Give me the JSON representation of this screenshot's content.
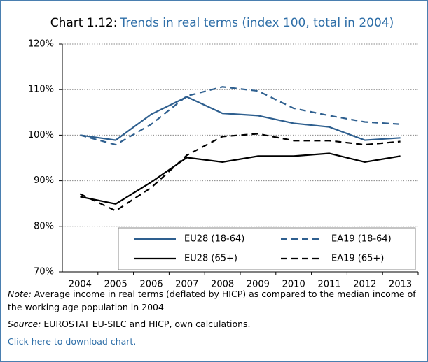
{
  "chart_data": {
    "type": "line",
    "title_label": "Chart 1.12:",
    "title": "Trends in real terms (index 100, total in 2004)",
    "categories": [
      "2004",
      "2005",
      "2006",
      "2007",
      "2008",
      "2009",
      "2010",
      "2011",
      "2012",
      "2013"
    ],
    "series": [
      {
        "name": "EU28 (18-64)",
        "color": "#2e5f8f",
        "line_style": "solid",
        "values": [
          100,
          98.9,
          104.6,
          108.4,
          104.8,
          104.3,
          102.6,
          101.8,
          98.9,
          99.4
        ]
      },
      {
        "name": "EA19 (18-64)",
        "color": "#2e5f8f",
        "line_style": "dashed",
        "values": [
          100,
          97.9,
          102.4,
          108.6,
          110.6,
          109.7,
          105.9,
          104.3,
          102.9,
          102.4
        ]
      },
      {
        "name": "EU28 (65+)",
        "color": "#000000",
        "line_style": "solid",
        "values": [
          86.5,
          84.9,
          89.7,
          95.1,
          94.1,
          95.4,
          95.4,
          96.0,
          94.1,
          95.4
        ]
      },
      {
        "name": "EA19 (65+)",
        "color": "#000000",
        "line_style": "dashed",
        "values": [
          87.1,
          83.4,
          88.5,
          95.6,
          99.7,
          100.3,
          98.8,
          98.8,
          97.9,
          98.6
        ]
      }
    ],
    "ylim": [
      70,
      120
    ],
    "yticks": [
      {
        "value": 70,
        "label": "70%"
      },
      {
        "value": 80,
        "label": "80%"
      },
      {
        "value": 90,
        "label": "90%"
      },
      {
        "value": 100,
        "label": "100%"
      },
      {
        "value": 110,
        "label": "110%"
      },
      {
        "value": 120,
        "label": "120%"
      }
    ],
    "grid": true,
    "legend_position": "lower right"
  },
  "notes": {
    "note_label": "Note:",
    "note": "Average income in real terms (deflated by HICP) as compared to the median income of the working age population in 2004",
    "source_label": "Source:",
    "source": "EUROSTAT EU-SILC and HICP, own calculations.",
    "link": "Click here to download chart."
  }
}
